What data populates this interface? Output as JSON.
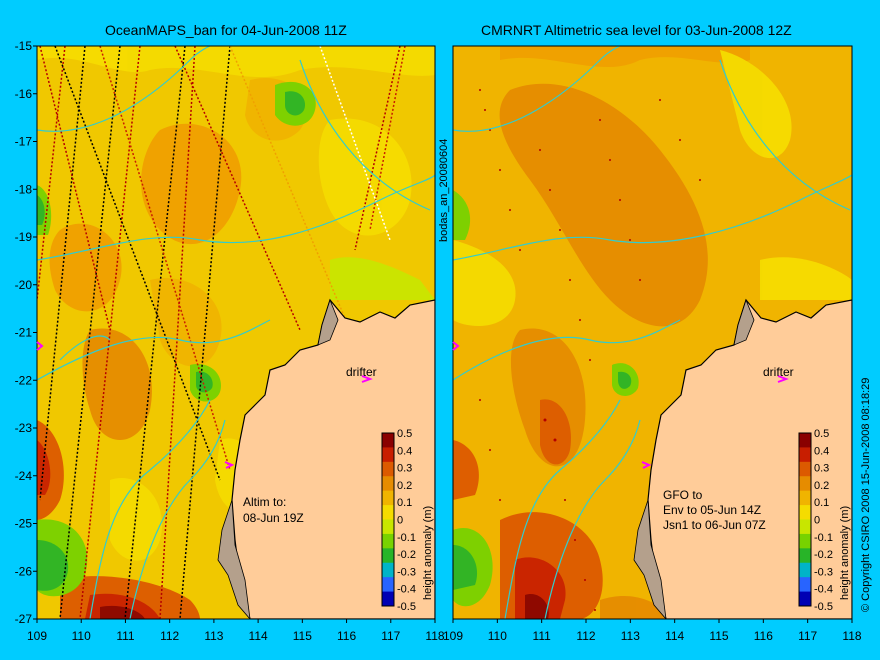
{
  "left_panel": {
    "title": "OceanMAPS_ban for 04-Jun-2008 11Z",
    "annotation": [
      "Altim to:",
      "08-Jun 19Z"
    ],
    "drifter_label": "drifter"
  },
  "right_panel": {
    "title": "CMRNRT Altimetric sea level  for 03-Jun-2008 12Z",
    "annotation": [
      "GFO to",
      "Env to 05-Jun 14Z",
      "Jsn1 to 06-Jun 07Z"
    ],
    "drifter_label": "drifter"
  },
  "colorbar": {
    "label": "height anomaly (m)",
    "ticks": [
      "0.5",
      "0.4",
      "0.3",
      "0.2",
      "0.1",
      "0",
      "-0.1",
      "-0.2",
      "-0.3",
      "-0.4",
      "-0.5"
    ],
    "colors": [
      "#8a0000",
      "#c81e00",
      "#dc5a00",
      "#e68c00",
      "#f0b400",
      "#f5dc00",
      "#c8e600",
      "#78d200",
      "#28b428",
      "#00b4c8",
      "#2864ff",
      "#0000b4"
    ]
  },
  "axes": {
    "lat_ticks": [
      "-15",
      "-16",
      "-17",
      "-18",
      "-19",
      "-20",
      "-21",
      "-22",
      "-23",
      "-24",
      "-25",
      "-26",
      "-27"
    ],
    "lon_ticks": [
      "109",
      "110",
      "111",
      "112",
      "113",
      "114",
      "115",
      "116",
      "117",
      "118"
    ]
  },
  "side_text": {
    "bodas": "bodas_an_20080604",
    "copyright": "© Copyright CSIRO 2008  15-Jun-2008 08:18:29"
  },
  "colors": {
    "background": "#00ccff",
    "land": "#ffcc99",
    "shelf_land": "#b4a08c",
    "coast": "#000000",
    "bathymetry": "#33cccc"
  }
}
